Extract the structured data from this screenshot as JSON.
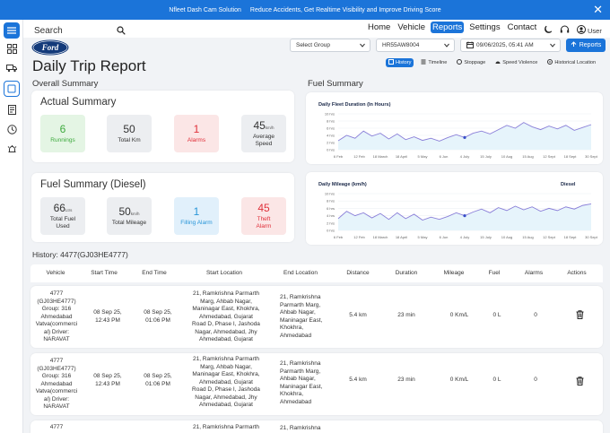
{
  "banner": {
    "brand": "Nfleet Dash Cam Solution",
    "tagline": "Reduce Accidents, Get Realtime Visibility and Improve Driving Score"
  },
  "search": {
    "placeholder": "Search"
  },
  "nav": {
    "items": [
      "Home",
      "Vehicle",
      "Reports",
      "Settings",
      "Contact"
    ],
    "active": "Reports"
  },
  "user": {
    "label": "User"
  },
  "logo": {
    "text": "Ford"
  },
  "page": {
    "title": "Daily Trip Report"
  },
  "filters": {
    "group": "Select Group",
    "vehicle": "HR55AW8004",
    "datetime": "09/06/2025, 05:41 AM",
    "reports_button": "Reports"
  },
  "tabs": [
    "History",
    "Timeline",
    "Stoppage",
    "Speed Violence",
    "Historical Location"
  ],
  "overall": {
    "heading": "Overall Summary",
    "card_title": "Actual Summary",
    "stats": [
      {
        "value": "6",
        "label": "Runnings",
        "unit": ""
      },
      {
        "value": "50",
        "label": "Total Km",
        "unit": ""
      },
      {
        "value": "1",
        "label": "Alarms",
        "unit": ""
      },
      {
        "value": "45",
        "label": "Average Speed",
        "unit": "km/h"
      }
    ]
  },
  "fuel": {
    "card_title": "Fuel Summary (Diesel)",
    "stats": [
      {
        "value": "66",
        "label": "Total Fuel Used",
        "unit": "Ltrs"
      },
      {
        "value": "50",
        "label": "Total Mileage",
        "unit": "km/h"
      },
      {
        "value": "1",
        "label": "Filling Alarm",
        "unit": ""
      },
      {
        "value": "45",
        "label": "Theft Alarm",
        "unit": ""
      }
    ]
  },
  "fuel_summary_heading": "Fuel Summary",
  "chart_data": [
    {
      "type": "line",
      "title": "Daily Fleet Duration (In Hours)",
      "categories": [
        "6 Feb",
        "12 Feb",
        "18 March",
        "18 April",
        "5 May",
        "6 Jun",
        "4 July",
        "15 July",
        "10 Aug",
        "15 Aug",
        "12 Sept",
        "18 Sept",
        "30 Sept"
      ],
      "yticks": [
        "0 hrs",
        "2 hrs",
        "4 hrs",
        "6 hrs",
        "8 hrs",
        "10 hrs"
      ],
      "ylim": [
        0,
        10
      ],
      "x": [
        0,
        0.4,
        0.8,
        1.2,
        1.6,
        2.0,
        2.4,
        2.8,
        3.2,
        3.6,
        4.0,
        4.4,
        4.8,
        5.2,
        5.6,
        6.0,
        6.4,
        6.8,
        7.2,
        7.6,
        8.0,
        8.4,
        8.8,
        9.2,
        9.6,
        10.0,
        10.4,
        10.8,
        11.2,
        11.6,
        12.0
      ],
      "values": [
        2.5,
        4.0,
        3.2,
        5.2,
        3.8,
        4.6,
        3.0,
        4.4,
        2.8,
        3.6,
        2.6,
        3.2,
        2.4,
        3.4,
        4.2,
        3.4,
        4.6,
        5.2,
        4.4,
        5.6,
        6.8,
        6.0,
        7.6,
        6.4,
        5.6,
        6.6,
        5.8,
        6.8,
        5.4,
        6.2,
        7.0
      ],
      "marker_index": 15
    },
    {
      "type": "line",
      "title": "Daily Mileage (km/h)",
      "legend": "Diesel",
      "categories": [
        "6 Feb",
        "12 Feb",
        "18 March",
        "18 April",
        "5 May",
        "6 Jun",
        "4 July",
        "15 July",
        "10 Aug",
        "15 Aug",
        "12 Sept",
        "18 Sept",
        "30 Sept"
      ],
      "yticks": [
        "0 hrs",
        "2 hrs",
        "4 hrs",
        "6 hrs",
        "8 hrs",
        "10 hrs"
      ],
      "ylim": [
        0,
        10
      ],
      "x": [
        0,
        0.4,
        0.8,
        1.2,
        1.6,
        2.0,
        2.4,
        2.8,
        3.2,
        3.6,
        4.0,
        4.4,
        4.8,
        5.2,
        5.6,
        6.0,
        6.4,
        6.8,
        7.2,
        7.6,
        8.0,
        8.4,
        8.8,
        9.2,
        9.6,
        10.0,
        10.4,
        10.8,
        11.2,
        11.6,
        12.0
      ],
      "values": [
        3.2,
        5.2,
        4.0,
        4.8,
        3.4,
        4.6,
        3.0,
        4.8,
        3.2,
        4.4,
        2.8,
        3.6,
        3.0,
        3.8,
        4.8,
        4.0,
        5.0,
        5.8,
        4.8,
        6.2,
        5.4,
        6.6,
        5.6,
        6.4,
        5.2,
        6.0,
        5.4,
        6.4,
        5.8,
        6.8,
        7.2
      ],
      "marker_index": 15
    }
  ],
  "history": {
    "title": "History: 4477(GJ03HE4777)",
    "columns": [
      "Vehicle",
      "Start Time",
      "End Time",
      "Start Location",
      "End Location",
      "Distance",
      "Duration",
      "Mileage",
      "Fuel",
      "Alarms",
      "Actions"
    ],
    "rows": [
      {
        "vehicle": [
          "4777",
          "(GJ03HE4777)",
          "Group: 316",
          "Ahmedabad",
          "Vatva(commerci",
          "al) Driver:",
          "NARAVAT"
        ],
        "start_time": [
          "08 Sep 25,",
          "12:43 PM"
        ],
        "end_time": [
          "08 Sep 25,",
          "01:06 PM"
        ],
        "start_location": [
          "21, Ramkrishna Parmarth",
          "Marg, Ahbab Nagar,",
          "Maninagar East, Khokhra,",
          "Ahmedabad, Gujarat",
          "Road D, Phase I, Jashoda",
          "Nagar, Ahmedabad, Jhy",
          "Ahmedabad, Gujarat"
        ],
        "end_location": [
          "21, Ramkrishna",
          "Parmarth Marg,",
          "Ahbab Nagar,",
          "Maninagar East,",
          "Khokhra,",
          "Ahmedabad"
        ],
        "distance": "5.4 km",
        "duration": "23 min",
        "mileage": "0 Km/L",
        "fuel": "0 L",
        "alarms": "0"
      },
      {
        "vehicle": [
          "4777",
          "(GJ03HE4777)",
          "Group: 316",
          "Ahmedabad",
          "Vatva(commerci",
          "al) Driver:",
          "NARAVAT"
        ],
        "start_time": [
          "08 Sep 25,",
          "12:43 PM"
        ],
        "end_time": [
          "08 Sep 25,",
          "01:06 PM"
        ],
        "start_location": [
          "21, Ramkrishna Parmarth",
          "Marg, Ahbab Nagar,",
          "Maninagar East, Khokhra,",
          "Ahmedabad, Gujarat",
          "Road D, Phase I, Jashoda",
          "Nagar, Ahmedabad, Jhy",
          "Ahmedabad, Gujarat"
        ],
        "end_location": [
          "21, Ramkrishna",
          "Parmarth Marg,",
          "Ahbab Nagar,",
          "Maninagar East,",
          "Khokhra,",
          "Ahmedabad"
        ],
        "distance": "5.4 km",
        "duration": "23 min",
        "mileage": "0 Km/L",
        "fuel": "0 L",
        "alarms": "0"
      },
      {
        "vehicle": [
          "4777"
        ],
        "start_location": [
          "21, Ramkrishna Parmarth"
        ],
        "end_location": [
          "21, Ramkrishna"
        ]
      }
    ]
  },
  "colors": {
    "primary": "#1b74d9",
    "chart_line": "#8a7fd8",
    "chart_fill": "#e6f4fb",
    "green": "#3daa3d",
    "red": "#e0303a",
    "blue": "#2996d8"
  }
}
